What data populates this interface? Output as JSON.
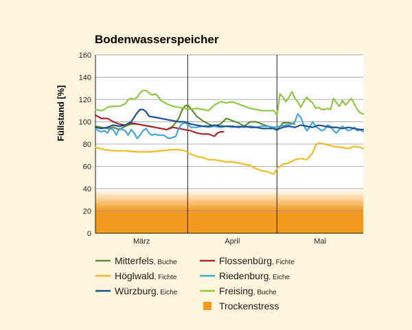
{
  "chart_data": {
    "type": "line",
    "title": "Bodenwasserspeicher",
    "ylabel": "Füllstand [%]",
    "xlabel": "",
    "ylim": [
      0,
      160
    ],
    "y_ticks": [
      0,
      20,
      40,
      60,
      80,
      100,
      120,
      140,
      160
    ],
    "x_range_days": [
      0,
      90
    ],
    "months": [
      {
        "label": "März",
        "start": 0,
        "end": 31
      },
      {
        "label": "April",
        "start": 31,
        "end": 61
      },
      {
        "label": "Mai",
        "start": 61,
        "end": 90
      }
    ],
    "grid": true,
    "stress_band": {
      "label": "Trockenstress",
      "range": [
        0,
        40
      ],
      "solid_below": 20,
      "color": "#f29a1f"
    },
    "series": [
      {
        "name": "Mitterfels",
        "type": "Buche",
        "color": "#5d8a2a",
        "points": [
          [
            0,
            96
          ],
          [
            2,
            95
          ],
          [
            4,
            94
          ],
          [
            6,
            95
          ],
          [
            8,
            93
          ],
          [
            10,
            96
          ],
          [
            12,
            98
          ],
          [
            14,
            98
          ],
          [
            16,
            97
          ],
          [
            18,
            96
          ],
          [
            20,
            95
          ],
          [
            22,
            94
          ],
          [
            24,
            93
          ],
          [
            26,
            96
          ],
          [
            28,
            103
          ],
          [
            29,
            110
          ],
          [
            30,
            114
          ],
          [
            31,
            115
          ],
          [
            32,
            112
          ],
          [
            34,
            105
          ],
          [
            36,
            101
          ],
          [
            38,
            98
          ],
          [
            40,
            96
          ],
          [
            42,
            98
          ],
          [
            44,
            103
          ],
          [
            46,
            101
          ],
          [
            48,
            99
          ],
          [
            50,
            96
          ],
          [
            52,
            100
          ],
          [
            54,
            100
          ],
          [
            56,
            98
          ],
          [
            58,
            96
          ],
          [
            60,
            94
          ],
          [
            61,
            92
          ],
          [
            63,
            99
          ],
          [
            65,
            99
          ],
          [
            67,
            98
          ]
        ]
      },
      {
        "name": "Flossenbürg",
        "type": "Fichte",
        "color": "#a6262b",
        "points": [
          [
            0,
            106
          ],
          [
            2,
            103
          ],
          [
            4,
            103
          ],
          [
            6,
            100
          ],
          [
            8,
            98
          ],
          [
            10,
            97
          ],
          [
            12,
            99
          ],
          [
            14,
            98
          ],
          [
            16,
            97
          ],
          [
            18,
            96
          ],
          [
            20,
            95
          ],
          [
            22,
            94
          ],
          [
            24,
            93
          ],
          [
            26,
            95
          ],
          [
            28,
            94
          ],
          [
            30,
            93
          ],
          [
            32,
            92
          ],
          [
            34,
            90
          ],
          [
            36,
            89
          ],
          [
            38,
            89
          ],
          [
            40,
            87
          ],
          [
            41,
            90
          ],
          [
            42,
            91
          ],
          [
            43,
            91
          ]
        ]
      },
      {
        "name": "Höglwald",
        "type": "Fichte",
        "color": "#f2bb23",
        "points": [
          [
            0,
            77
          ],
          [
            3,
            75
          ],
          [
            6,
            74
          ],
          [
            10,
            74
          ],
          [
            14,
            73
          ],
          [
            18,
            73
          ],
          [
            22,
            74
          ],
          [
            26,
            75
          ],
          [
            28,
            75
          ],
          [
            30,
            74
          ],
          [
            32,
            71
          ],
          [
            34,
            69
          ],
          [
            36,
            68
          ],
          [
            38,
            66
          ],
          [
            40,
            66
          ],
          [
            42,
            65
          ],
          [
            44,
            64
          ],
          [
            46,
            64
          ],
          [
            48,
            63
          ],
          [
            50,
            62
          ],
          [
            52,
            61
          ],
          [
            54,
            58
          ],
          [
            56,
            56
          ],
          [
            58,
            55
          ],
          [
            60,
            53
          ],
          [
            61,
            58
          ],
          [
            63,
            62
          ],
          [
            65,
            63
          ],
          [
            67,
            66
          ],
          [
            69,
            67
          ],
          [
            71,
            66
          ],
          [
            73,
            72
          ],
          [
            74,
            79
          ],
          [
            75,
            81
          ],
          [
            77,
            80
          ],
          [
            80,
            78
          ],
          [
            83,
            77
          ],
          [
            85,
            76
          ],
          [
            87,
            78
          ],
          [
            89,
            77
          ],
          [
            90,
            76
          ]
        ]
      },
      {
        "name": "Riedenburg",
        "type": "Eiche",
        "color": "#41a6d6",
        "points": [
          [
            0,
            94
          ],
          [
            1,
            92
          ],
          [
            2,
            91
          ],
          [
            3,
            92
          ],
          [
            4,
            90
          ],
          [
            5,
            94
          ],
          [
            6,
            93
          ],
          [
            7,
            88
          ],
          [
            8,
            94
          ],
          [
            9,
            93
          ],
          [
            10,
            92
          ],
          [
            11,
            88
          ],
          [
            12,
            93
          ],
          [
            13,
            90
          ],
          [
            14,
            85
          ],
          [
            15,
            88
          ],
          [
            16,
            92
          ],
          [
            17,
            94
          ],
          [
            18,
            90
          ],
          [
            19,
            88
          ],
          [
            20,
            89
          ],
          [
            21,
            88
          ],
          [
            22,
            88
          ],
          [
            23,
            88
          ],
          [
            24,
            86
          ],
          [
            25,
            85
          ],
          [
            26,
            86
          ],
          [
            27,
            87
          ],
          [
            28,
            94
          ],
          [
            29,
            98
          ],
          [
            30,
            99
          ],
          [
            31,
            98
          ],
          [
            32,
            95
          ],
          [
            34,
            95
          ],
          [
            36,
            96
          ],
          [
            38,
            95
          ],
          [
            40,
            96
          ],
          [
            42,
            95
          ],
          [
            44,
            96
          ],
          [
            46,
            95
          ],
          [
            48,
            96
          ],
          [
            50,
            95
          ],
          [
            52,
            96
          ],
          [
            54,
            95
          ],
          [
            56,
            96
          ],
          [
            58,
            96
          ],
          [
            60,
            95
          ],
          [
            62,
            96
          ],
          [
            64,
            97
          ],
          [
            66,
            98
          ],
          [
            67,
            100
          ],
          [
            68,
            107
          ],
          [
            69,
            104
          ],
          [
            70,
            97
          ],
          [
            71,
            92
          ],
          [
            72,
            95
          ],
          [
            73,
            100
          ],
          [
            74,
            96
          ],
          [
            75,
            94
          ],
          [
            76,
            92
          ],
          [
            77,
            93
          ],
          [
            78,
            97
          ],
          [
            79,
            96
          ],
          [
            80,
            92
          ],
          [
            81,
            90
          ],
          [
            82,
            93
          ],
          [
            83,
            96
          ],
          [
            84,
            94
          ],
          [
            85,
            92
          ],
          [
            86,
            93
          ],
          [
            87,
            95
          ],
          [
            88,
            92
          ],
          [
            89,
            93
          ],
          [
            90,
            91
          ]
        ]
      },
      {
        "name": "Würzburg",
        "type": "Eiche",
        "color": "#1b4f91",
        "points": [
          [
            0,
            95
          ],
          [
            2,
            94
          ],
          [
            4,
            95
          ],
          [
            6,
            97
          ],
          [
            8,
            96
          ],
          [
            10,
            97
          ],
          [
            12,
            100
          ],
          [
            13,
            104
          ],
          [
            14,
            108
          ],
          [
            15,
            111
          ],
          [
            16,
            111
          ],
          [
            17,
            109
          ],
          [
            18,
            105
          ],
          [
            20,
            104
          ],
          [
            22,
            103
          ],
          [
            24,
            102
          ],
          [
            26,
            101
          ],
          [
            28,
            100
          ],
          [
            30,
            100
          ],
          [
            32,
            98
          ],
          [
            34,
            97
          ],
          [
            36,
            96
          ],
          [
            38,
            96
          ],
          [
            40,
            97
          ],
          [
            42,
            96
          ],
          [
            44,
            96
          ],
          [
            46,
            96
          ],
          [
            48,
            95
          ],
          [
            50,
            96
          ],
          [
            52,
            95
          ],
          [
            54,
            95
          ],
          [
            56,
            94
          ],
          [
            58,
            94
          ],
          [
            60,
            94
          ],
          [
            61,
            93
          ],
          [
            63,
            95
          ],
          [
            65,
            96
          ],
          [
            67,
            95
          ],
          [
            69,
            97
          ],
          [
            71,
            96
          ],
          [
            73,
            95
          ],
          [
            75,
            97
          ],
          [
            77,
            96
          ],
          [
            79,
            95
          ],
          [
            81,
            95
          ],
          [
            83,
            94
          ],
          [
            85,
            95
          ],
          [
            87,
            94
          ],
          [
            89,
            93
          ],
          [
            90,
            93
          ]
        ]
      },
      {
        "name": "Freising",
        "type": "Buche",
        "color": "#8ec640",
        "points": [
          [
            0,
            111
          ],
          [
            2,
            110
          ],
          [
            3,
            111
          ],
          [
            4,
            113
          ],
          [
            6,
            114
          ],
          [
            8,
            114
          ],
          [
            10,
            116
          ],
          [
            11,
            120
          ],
          [
            12,
            121
          ],
          [
            13,
            120
          ],
          [
            14,
            122
          ],
          [
            15,
            126
          ],
          [
            16,
            128
          ],
          [
            17,
            128
          ],
          [
            18,
            126
          ],
          [
            19,
            124
          ],
          [
            20,
            125
          ],
          [
            21,
            123
          ],
          [
            22,
            119
          ],
          [
            24,
            116
          ],
          [
            26,
            114
          ],
          [
            28,
            113
          ],
          [
            30,
            112
          ],
          [
            32,
            111
          ],
          [
            34,
            112
          ],
          [
            36,
            111
          ],
          [
            38,
            110
          ],
          [
            40,
            115
          ],
          [
            42,
            118
          ],
          [
            44,
            117
          ],
          [
            46,
            118
          ],
          [
            48,
            116
          ],
          [
            50,
            114
          ],
          [
            52,
            112
          ],
          [
            54,
            111
          ],
          [
            56,
            110
          ],
          [
            58,
            110
          ],
          [
            60,
            110
          ],
          [
            61,
            106
          ],
          [
            62,
            125
          ],
          [
            63,
            122
          ],
          [
            64,
            118
          ],
          [
            65,
            122
          ],
          [
            66,
            127
          ],
          [
            67,
            121
          ],
          [
            68,
            118
          ],
          [
            69,
            113
          ],
          [
            70,
            118
          ],
          [
            71,
            122
          ],
          [
            72,
            119
          ],
          [
            73,
            117
          ],
          [
            74,
            112
          ],
          [
            75,
            113
          ],
          [
            76,
            111
          ],
          [
            77,
            111
          ],
          [
            78,
            112
          ],
          [
            79,
            111
          ],
          [
            80,
            121
          ],
          [
            81,
            117
          ],
          [
            82,
            114
          ],
          [
            83,
            119
          ],
          [
            84,
            115
          ],
          [
            85,
            118
          ],
          [
            86,
            121
          ],
          [
            87,
            116
          ],
          [
            88,
            111
          ],
          [
            89,
            108
          ],
          [
            90,
            107
          ]
        ]
      }
    ]
  },
  "legend": {
    "left": [
      {
        "name": "Mitterfels",
        "type": "Buche",
        "color": "#5d8a2a"
      },
      {
        "name": "Höglwald",
        "type": "Fichte",
        "color": "#f2bb23"
      },
      {
        "name": "Würzburg",
        "type": "Eiche",
        "color": "#1b4f91"
      }
    ],
    "right": [
      {
        "name": "Flossenbürg",
        "type": "Fichte",
        "color": "#a6262b"
      },
      {
        "name": "Riedenburg",
        "type": "Eiche",
        "color": "#41a6d6"
      },
      {
        "name": "Freising",
        "type": "Buche",
        "color": "#8ec640"
      },
      {
        "name": "Trockenstress",
        "type": "",
        "color": "#f29a1f",
        "swatch": "square"
      }
    ]
  }
}
